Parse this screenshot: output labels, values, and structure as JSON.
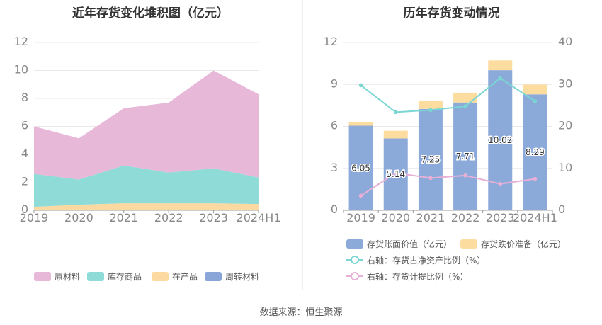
{
  "titles": {
    "left": "近年存货变化堆积图（亿元）",
    "right": "历年存货变动情况"
  },
  "source": "数据来源：恒生聚源",
  "colors": {
    "raw": "#e8b8d9",
    "wip_goods": "#8fdbd7",
    "in_process": "#fcd9a0",
    "turnover": "#8aa6d8",
    "bar_main": "#8caad9",
    "bar_reserve": "#fddca0",
    "line_ratio": "#7ad6d2",
    "line_provision": "#e8b0d6",
    "grid": "#e8e8e8",
    "axis": "#888888"
  },
  "chart_data": [
    {
      "type": "area",
      "title": "近年存货变化堆积图（亿元）",
      "categories": [
        "2019",
        "2020",
        "2021",
        "2022",
        "2023",
        "2024H1"
      ],
      "ylim": [
        0,
        12
      ],
      "yticks": [
        "0",
        "2",
        "4",
        "6",
        "8",
        "10",
        "12"
      ],
      "stacked": true,
      "legend_position": "bottom",
      "grid": true,
      "series": [
        {
          "name": "周转材料",
          "color_key": "turnover",
          "values": [
            0.0,
            0.0,
            0.0,
            0.0,
            0.0,
            0.0
          ]
        },
        {
          "name": "在产品",
          "color_key": "in_process",
          "values": [
            0.25,
            0.4,
            0.5,
            0.5,
            0.5,
            0.45
          ]
        },
        {
          "name": "库存商品",
          "color_key": "wip_goods",
          "values": [
            2.35,
            1.8,
            2.7,
            2.2,
            2.5,
            1.9
          ]
        },
        {
          "name": "原材料",
          "color_key": "raw",
          "values": [
            3.4,
            2.95,
            4.1,
            5.0,
            7.0,
            5.95
          ]
        }
      ],
      "legend_order": [
        "原材料",
        "库存商品",
        "在产品",
        "周转材料"
      ]
    },
    {
      "type": "bar",
      "title": "历年存货变动情况",
      "categories": [
        "2019",
        "2020",
        "2021",
        "2022",
        "2023",
        "2024H1"
      ],
      "ylim_left": [
        0,
        12
      ],
      "yticks_left": [
        "0",
        "3",
        "6",
        "9",
        "12"
      ],
      "ylim_right": [
        0,
        40
      ],
      "yticks_right": [
        "0",
        "10",
        "20",
        "30",
        "40"
      ],
      "legend_position": "bottom",
      "grid": true,
      "series": [
        {
          "name": "存货账面价值（亿元）",
          "kind": "bar",
          "axis": "left",
          "color_key": "bar_main",
          "values": [
            6.05,
            5.14,
            7.25,
            7.71,
            10.02,
            8.29
          ],
          "labels": [
            "6.05",
            "5.14",
            "7.25",
            "7.71",
            "10.02",
            "8.29"
          ]
        },
        {
          "name": "存货跌价准备（亿元）",
          "kind": "bar",
          "axis": "left",
          "stacked": true,
          "color_key": "bar_reserve",
          "values": [
            0.25,
            0.55,
            0.6,
            0.7,
            0.7,
            0.7
          ]
        },
        {
          "name": "右轴：存货占净资产比例（%）",
          "kind": "line",
          "axis": "right",
          "color_key": "line_ratio",
          "values": [
            29.8,
            23.4,
            23.9,
            24.8,
            31.5,
            26.0
          ]
        },
        {
          "name": "右轴：存货计提比例（%）",
          "kind": "line",
          "axis": "right",
          "color_key": "line_provision",
          "values": [
            3.5,
            8.9,
            7.7,
            8.3,
            6.3,
            7.5
          ]
        }
      ]
    }
  ]
}
